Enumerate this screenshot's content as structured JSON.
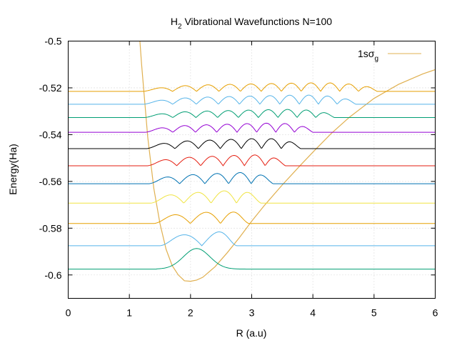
{
  "chart_data": {
    "type": "line",
    "title_main": "H",
    "title_sub": "2",
    "title_rest": " Vibrational Wavefunctions N=100",
    "xlabel": "R (a.u)",
    "ylabel": "Energy(Ha)",
    "xlim": [
      0,
      6
    ],
    "ylim": [
      -0.61,
      -0.5
    ],
    "x_ticks": [
      0,
      1,
      2,
      3,
      4,
      5,
      6
    ],
    "y_ticks": [
      -0.5,
      -0.52,
      -0.54,
      -0.56,
      -0.58,
      -0.6
    ],
    "x_tick_labels": [
      "0",
      "1",
      "2",
      "3",
      "4",
      "5",
      "6"
    ],
    "y_tick_labels": [
      "-0.5",
      "-0.52",
      "-0.54",
      "-0.56",
      "-0.58",
      "-0.6"
    ],
    "grid": true,
    "legend_position": "top-right",
    "legend": {
      "main": "1sσ",
      "sub": "g",
      "color": "#e0b050"
    },
    "potential": {
      "color": "#e0b050",
      "x": [
        1.15,
        1.2,
        1.3,
        1.4,
        1.5,
        1.6,
        1.7,
        1.8,
        1.9,
        2.0,
        2.1,
        2.2,
        2.4,
        2.6,
        2.8,
        3.0,
        3.2,
        3.5,
        3.8,
        4.0,
        4.3,
        4.6,
        5.0,
        5.4,
        5.8,
        6.0
      ],
      "y": [
        -0.492,
        -0.51,
        -0.541,
        -0.563,
        -0.578,
        -0.589,
        -0.596,
        -0.6,
        -0.6025,
        -0.6027,
        -0.6022,
        -0.601,
        -0.5965,
        -0.5905,
        -0.584,
        -0.577,
        -0.5705,
        -0.5615,
        -0.553,
        -0.5475,
        -0.5395,
        -0.5325,
        -0.5245,
        -0.5185,
        -0.514,
        -0.5122
      ]
    },
    "levels": [
      {
        "energy": -0.5975,
        "color": "#009e73",
        "n": 0,
        "left": 1.65,
        "right": 2.55,
        "amp": 0.0088
      },
      {
        "energy": -0.5875,
        "color": "#56b4e9",
        "n": 1,
        "left": 1.5,
        "right": 2.75,
        "amp": 0.0068
      },
      {
        "energy": -0.578,
        "color": "#e69f00",
        "n": 2,
        "left": 1.4,
        "right": 2.95,
        "amp": 0.006
      },
      {
        "energy": -0.5693,
        "color": "#f0e442",
        "n": 3,
        "left": 1.35,
        "right": 3.15,
        "amp": 0.0062
      },
      {
        "energy": -0.561,
        "color": "#0072b2",
        "n": 4,
        "left": 1.32,
        "right": 3.35,
        "amp": 0.0055
      },
      {
        "energy": -0.5533,
        "color": "#e51e10",
        "n": 5,
        "left": 1.3,
        "right": 3.55,
        "amp": 0.0053
      },
      {
        "energy": -0.546,
        "color": "#000000",
        "n": 6,
        "left": 1.28,
        "right": 3.8,
        "amp": 0.005
      },
      {
        "energy": -0.539,
        "color": "#9400d3",
        "n": 7,
        "left": 1.26,
        "right": 4.0,
        "amp": 0.0045
      },
      {
        "energy": -0.5327,
        "color": "#009e73",
        "n": 8,
        "left": 1.25,
        "right": 4.35,
        "amp": 0.004
      },
      {
        "energy": -0.527,
        "color": "#56b4e9",
        "n": 9,
        "left": 1.24,
        "right": 4.7,
        "amp": 0.0045
      },
      {
        "energy": -0.5215,
        "color": "#e69f00",
        "n": 10,
        "left": 1.23,
        "right": 5.05,
        "amp": 0.0042
      }
    ]
  }
}
